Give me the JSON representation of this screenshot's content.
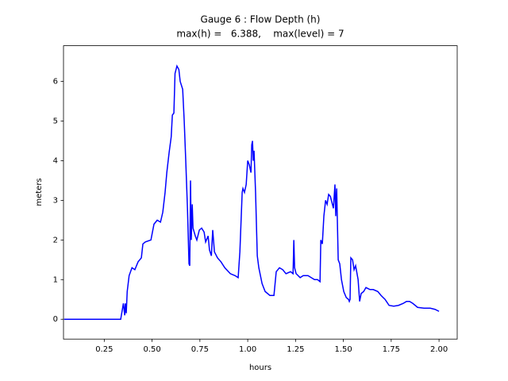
{
  "chart_data": {
    "type": "line",
    "title": "Gauge 6 : Flow Depth (h)",
    "subtitle": "max(h) =   6.388,    max(level) = 7",
    "xlabel": "hours",
    "ylabel": "meters",
    "xlim": [
      0.037,
      2.095
    ],
    "ylim": [
      -0.5,
      6.9
    ],
    "xticks": [
      {
        "value": 0.25,
        "label": "0.25"
      },
      {
        "value": 0.5,
        "label": "0.50"
      },
      {
        "value": 0.75,
        "label": "0.75"
      },
      {
        "value": 1.0,
        "label": "1.00"
      },
      {
        "value": 1.25,
        "label": "1.25"
      },
      {
        "value": 1.5,
        "label": "1.50"
      },
      {
        "value": 1.75,
        "label": "1.75"
      },
      {
        "value": 2.0,
        "label": "2.00"
      }
    ],
    "yticks": [
      0,
      1,
      2,
      3,
      4,
      5,
      6
    ],
    "series": [
      {
        "color": "#0000ff",
        "x": [
          0.04,
          0.336,
          0.35,
          0.357,
          0.36,
          0.365,
          0.37,
          0.38,
          0.395,
          0.41,
          0.427,
          0.444,
          0.452,
          0.465,
          0.494,
          0.51,
          0.527,
          0.544,
          0.556,
          0.568,
          0.577,
          0.589,
          0.6,
          0.606,
          0.614,
          0.62,
          0.63,
          0.64,
          0.647,
          0.66,
          0.668,
          0.676,
          0.685,
          0.693,
          0.697,
          0.701,
          0.705,
          0.71,
          0.714,
          0.726,
          0.734,
          0.747,
          0.759,
          0.772,
          0.78,
          0.793,
          0.8,
          0.81,
          0.817,
          0.826,
          0.842,
          0.86,
          0.88,
          0.909,
          0.934,
          0.95,
          0.959,
          0.967,
          0.971,
          0.975,
          0.983,
          0.992,
          1.0,
          1.008,
          1.017,
          1.021,
          1.025,
          1.029,
          1.033,
          1.041,
          1.05,
          1.058,
          1.075,
          1.091,
          1.116,
          1.137,
          1.141,
          1.149,
          1.166,
          1.183,
          1.2,
          1.224,
          1.237,
          1.241,
          1.245,
          1.253,
          1.274,
          1.29,
          1.315,
          1.332,
          1.349,
          1.365,
          1.378,
          1.382,
          1.39,
          1.398,
          1.407,
          1.415,
          1.423,
          1.432,
          1.44,
          1.448,
          1.456,
          1.46,
          1.465,
          1.473,
          1.481,
          1.49,
          1.502,
          1.515,
          1.527,
          1.531,
          1.535,
          1.539,
          1.548,
          1.556,
          1.564,
          1.577,
          1.585,
          1.593,
          1.606,
          1.618,
          1.639,
          1.656,
          1.68,
          1.697,
          1.718,
          1.739,
          1.763,
          1.788,
          1.813,
          1.83,
          1.846,
          1.863,
          1.888,
          1.921,
          1.954,
          1.979,
          2.0
        ],
        "values": [
          0,
          0,
          0.4,
          0.1,
          0.4,
          0.15,
          0.7,
          1.1,
          1.3,
          1.25,
          1.45,
          1.55,
          1.9,
          1.95,
          2.0,
          2.4,
          2.5,
          2.45,
          2.7,
          3.2,
          3.7,
          4.2,
          4.6,
          5.15,
          5.2,
          6.2,
          6.388,
          6.3,
          6.0,
          5.8,
          5.0,
          4.0,
          2.8,
          1.4,
          1.35,
          3.5,
          2.0,
          2.9,
          2.3,
          2.1,
          2.0,
          2.25,
          2.3,
          2.2,
          1.95,
          2.1,
          1.75,
          1.6,
          2.25,
          1.7,
          1.55,
          1.45,
          1.3,
          1.15,
          1.1,
          1.05,
          1.7,
          2.7,
          3.2,
          3.3,
          3.2,
          3.4,
          4.0,
          3.9,
          3.7,
          4.4,
          4.5,
          4.0,
          4.25,
          3.2,
          1.6,
          1.3,
          0.9,
          0.7,
          0.6,
          0.6,
          0.8,
          1.2,
          1.3,
          1.25,
          1.15,
          1.2,
          1.15,
          2.0,
          1.3,
          1.15,
          1.05,
          1.1,
          1.1,
          1.05,
          1.0,
          1.0,
          0.95,
          2.0,
          1.9,
          2.6,
          3.0,
          2.9,
          3.15,
          3.1,
          2.95,
          2.8,
          3.4,
          2.6,
          3.3,
          1.5,
          1.4,
          1.0,
          0.7,
          0.55,
          0.5,
          0.45,
          0.5,
          1.55,
          1.5,
          1.25,
          1.35,
          1.0,
          0.45,
          0.65,
          0.7,
          0.8,
          0.75,
          0.75,
          0.7,
          0.6,
          0.5,
          0.35,
          0.33,
          0.35,
          0.4,
          0.45,
          0.45,
          0.4,
          0.3,
          0.28,
          0.28,
          0.25,
          0.2
        ]
      }
    ]
  }
}
